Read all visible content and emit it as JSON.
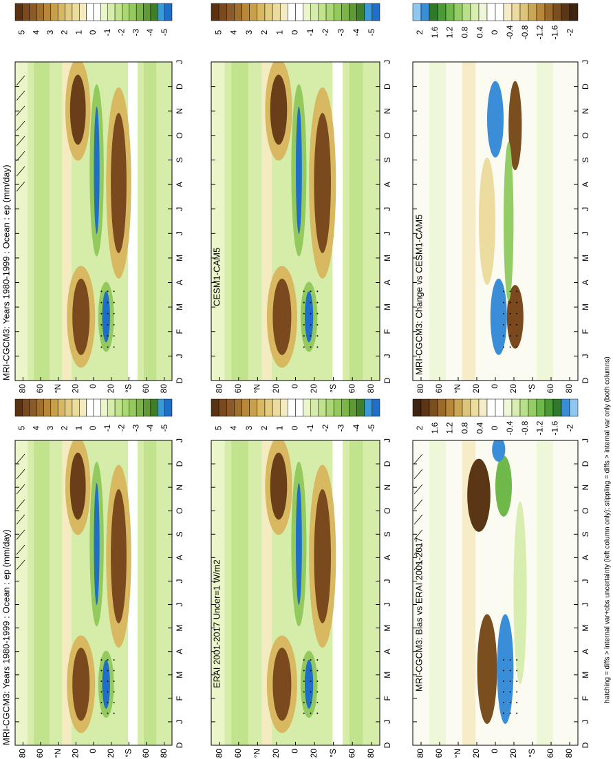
{
  "panels": [
    {
      "title": "MRI-CGCM3: Years 1980-1999 : Ocean : ep (mm/day)",
      "colorbar_labels": [
        5,
        4,
        3,
        2,
        1,
        0,
        -1,
        -2,
        -3,
        -4,
        -5
      ],
      "month_labels": [
        "D",
        "J",
        "F",
        "M",
        "A",
        "M",
        "J",
        "J",
        "A",
        "S",
        "O",
        "N",
        "D",
        "J"
      ],
      "lat_labels": [
        "80",
        "60",
        "°N",
        "20",
        "0",
        "20",
        "°S",
        "60",
        "80"
      ]
    },
    {
      "title": "CESM1-CAM5",
      "colorbar_labels": [
        5,
        4,
        3,
        2,
        1,
        0,
        -1,
        -2,
        -3,
        -4,
        -5
      ],
      "month_labels": [
        "D",
        "J",
        "F",
        "M",
        "A",
        "M",
        "J",
        "J",
        "A",
        "S",
        "O",
        "N",
        "D",
        "J"
      ],
      "lat_labels": [
        "80",
        "60",
        "°N",
        "20",
        "0",
        "20",
        "°S",
        "60",
        "80"
      ]
    },
    {
      "title": "MRI-CGCM3: Change vs CESM1-CAM5",
      "colorbar_labels": [
        2,
        1.6,
        1.2,
        0.8,
        0.4,
        0,
        -0.4,
        -0.8,
        -1.2,
        -1.6,
        -2
      ],
      "month_labels": [
        "D",
        "J",
        "F",
        "M",
        "A",
        "M",
        "J",
        "J",
        "A",
        "S",
        "O",
        "N",
        "D",
        "J"
      ],
      "lat_labels": [
        "80",
        "60",
        "°N",
        "20",
        "0",
        "20",
        "°S",
        "60",
        "80"
      ]
    },
    {
      "title": "MRI-CGCM3: Years 1980-1999 : Ocean : ep (mm/day)",
      "colorbar_labels": [
        5,
        4,
        3,
        2,
        1,
        0,
        -1,
        -2,
        -3,
        -4,
        -5
      ],
      "month_labels": [
        "D",
        "J",
        "F",
        "M",
        "A",
        "M",
        "J",
        "J",
        "A",
        "S",
        "O",
        "N",
        "D",
        "J"
      ],
      "lat_labels": [
        "80",
        "60",
        "°N",
        "20",
        "0",
        "20",
        "°S",
        "60",
        "80"
      ]
    },
    {
      "title": "ERAI 2001-2017 Uncer=1 W/m2",
      "colorbar_labels": [
        5,
        4,
        3,
        2,
        1,
        0,
        -1,
        -2,
        -3,
        -4,
        -5
      ],
      "month_labels": [
        "D",
        "J",
        "F",
        "M",
        "A",
        "M",
        "J",
        "J",
        "A",
        "S",
        "O",
        "N",
        "D",
        "J"
      ],
      "lat_labels": [
        "80",
        "60",
        "°N",
        "20",
        "0",
        "20",
        "°S",
        "60",
        "80"
      ]
    },
    {
      "title": "MRI-CGCM3: Bias vs ERAI 2001-2017",
      "colorbar_labels": [
        2,
        1.6,
        1.2,
        0.8,
        0.4,
        0,
        -0.4,
        -0.8,
        -1.2,
        -1.6,
        -2
      ],
      "month_labels": [
        "D",
        "J",
        "F",
        "M",
        "A",
        "M",
        "J",
        "J",
        "A",
        "S",
        "O",
        "N",
        "D",
        "J"
      ],
      "lat_labels": [
        "80",
        "60",
        "°N",
        "20",
        "0",
        "20",
        "°S",
        "60",
        "80"
      ]
    }
  ],
  "footnote": "hatching = diffs > internal var+obs uncertainty (left column only); stippling = diffs > internal var only (both columns)"
}
